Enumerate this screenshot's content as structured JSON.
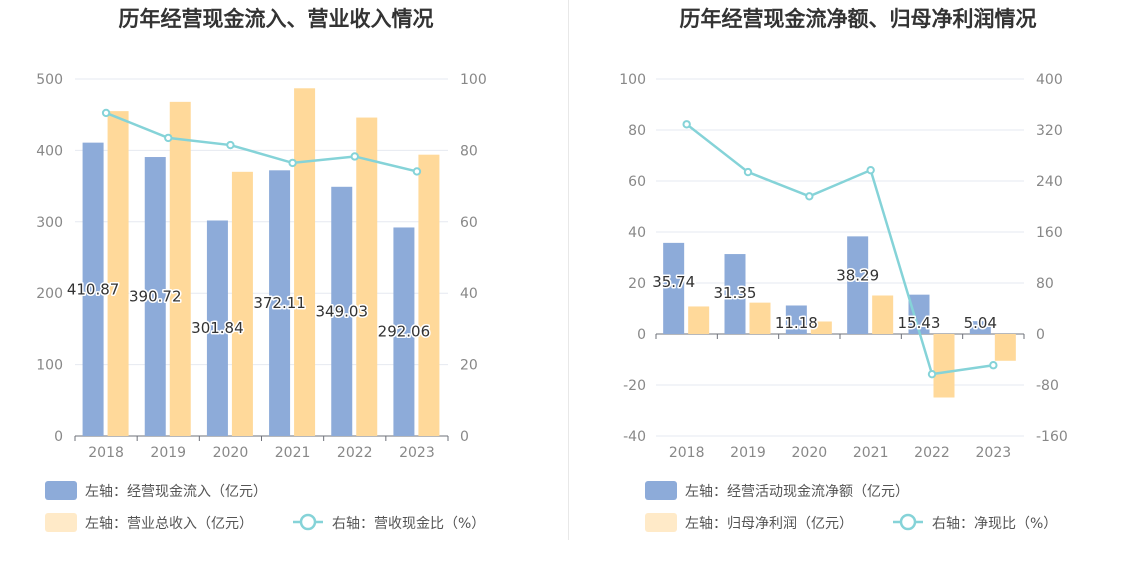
{
  "colors": {
    "bar_primary": "#8dabd9",
    "bar_secondary": "#ffd99a",
    "line": "#85d3d8",
    "text": "#333333",
    "axis_text": "#888888",
    "grid": "#e6e9f0"
  },
  "chart_data": [
    {
      "type": "bar",
      "title": "历年经营现金流入、营业收入情况",
      "categories": [
        "2018",
        "2019",
        "2020",
        "2021",
        "2022",
        "2023"
      ],
      "left_axis": {
        "ticks": [
          "0",
          "100",
          "200",
          "300",
          "400",
          "500"
        ],
        "ylim": [
          0,
          500
        ]
      },
      "right_axis": {
        "ticks": [
          "0",
          "20",
          "40",
          "60",
          "80",
          "100"
        ],
        "ylim": [
          0,
          100
        ]
      },
      "series": [
        {
          "name": "左轴：经营现金流入（亿元）",
          "kind": "bar",
          "axis": "left",
          "values": [
            410.87,
            390.72,
            301.84,
            372.11,
            349.03,
            292.06
          ],
          "labels": [
            "410.87",
            "390.72",
            "301.84",
            "372.11",
            "349.03",
            "292.06"
          ]
        },
        {
          "name": "左轴：营业总收入（亿元）",
          "kind": "bar",
          "axis": "left",
          "values": [
            455,
            468,
            370,
            487,
            446,
            394
          ]
        },
        {
          "name": "右轴：营收现金比（%）",
          "kind": "line",
          "axis": "right",
          "values": [
            90.5,
            83.5,
            81.5,
            76.5,
            78.3,
            74.1
          ]
        }
      ]
    },
    {
      "type": "bar",
      "title": "历年经营现金流净额、归母净利润情况",
      "categories": [
        "2018",
        "2019",
        "2020",
        "2021",
        "2022",
        "2023"
      ],
      "left_axis": {
        "ticks": [
          "-40",
          "-20",
          "0",
          "20",
          "40",
          "60",
          "80",
          "100"
        ],
        "ylim": [
          -40,
          100
        ]
      },
      "right_axis": {
        "ticks": [
          "-160",
          "-80",
          "0",
          "80",
          "160",
          "240",
          "320",
          "400"
        ],
        "ylim": [
          -160,
          400
        ]
      },
      "series": [
        {
          "name": "左轴：经营活动现金流净额（亿元）",
          "kind": "bar",
          "axis": "left",
          "values": [
            35.74,
            31.35,
            11.18,
            38.29,
            15.43,
            5.04
          ],
          "labels": [
            "35.74",
            "31.35",
            "11.18",
            "38.29",
            "15.43",
            "5.04"
          ]
        },
        {
          "name": "左轴：归母净利润（亿元）",
          "kind": "bar",
          "axis": "left",
          "values": [
            10.8,
            12.3,
            4.9,
            15.1,
            -24.9,
            -10.5
          ]
        },
        {
          "name": "右轴：净现比（%）",
          "kind": "line",
          "axis": "right",
          "values": [
            329,
            254,
            216,
            257,
            -63,
            -49
          ]
        }
      ]
    }
  ]
}
